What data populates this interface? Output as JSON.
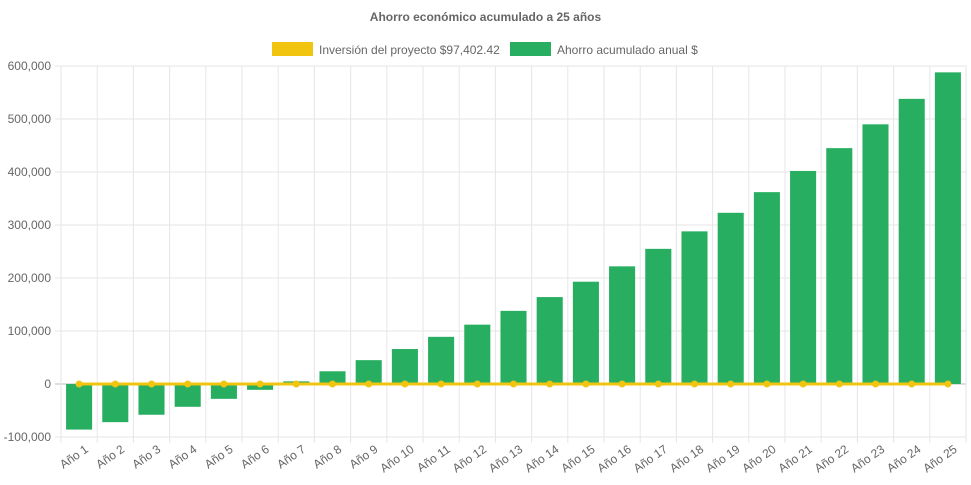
{
  "chart_data": {
    "type": "bar",
    "title": "Ahorro económico acumulado a 25 años",
    "legend_position": "top",
    "grid": true,
    "categories": [
      "Año 1",
      "Año 2",
      "Año 3",
      "Año 4",
      "Año 5",
      "Año 6",
      "Año 7",
      "Año 8",
      "Año 9",
      "Año 10",
      "Año 11",
      "Año 12",
      "Año 13",
      "Año 14",
      "Año 15",
      "Año 16",
      "Año 17",
      "Año 18",
      "Año 19",
      "Año 20",
      "Año 21",
      "Año 22",
      "Año 23",
      "Año 24",
      "Año 25"
    ],
    "ylim": [
      -100000,
      600000
    ],
    "yticks": [
      -100000,
      0,
      100000,
      200000,
      300000,
      400000,
      500000,
      600000
    ],
    "ytick_labels": [
      "-100,000",
      "0",
      "100,000",
      "200,000",
      "300,000",
      "400,000",
      "500,000",
      "600,000"
    ],
    "series": [
      {
        "name": "Inversión del proyecto $97,402.42",
        "type": "line",
        "color": "#f1c40f",
        "values": [
          0,
          0,
          0,
          0,
          0,
          0,
          0,
          0,
          0,
          0,
          0,
          0,
          0,
          0,
          0,
          0,
          0,
          0,
          0,
          0,
          0,
          0,
          0,
          0,
          0
        ]
      },
      {
        "name": "Ahorro acumulado anual $",
        "type": "bar",
        "color": "#27ae60",
        "values": [
          -86000,
          -72000,
          -58000,
          -43000,
          -28000,
          -11000,
          5000,
          24000,
          45000,
          66000,
          89000,
          112000,
          138000,
          164000,
          193000,
          222000,
          255000,
          288000,
          323000,
          362000,
          402000,
          445000,
          490000,
          538000,
          588000
        ]
      }
    ]
  }
}
